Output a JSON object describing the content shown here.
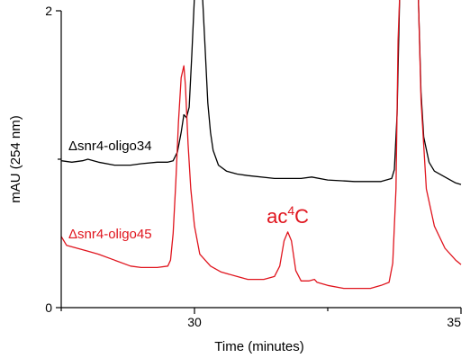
{
  "chart_data": {
    "type": "line",
    "title": "",
    "xlabel": "Time (minutes)",
    "ylabel": "mAU (254 nm)",
    "xlim": [
      27.5,
      35
    ],
    "ylim": [
      0,
      2
    ],
    "x_ticks": [
      {
        "value": 30,
        "label": "30"
      },
      {
        "value": 35,
        "label": "35"
      }
    ],
    "x_minor_ticks": [
      27.5,
      32.5
    ],
    "y_ticks": [
      {
        "value": 0,
        "label": "0"
      },
      {
        "value": 2,
        "label": "2"
      }
    ],
    "y_minor_ticks": [
      1
    ],
    "series": [
      {
        "name": "Δsnr4-oligo34",
        "color": "#000000",
        "points": [
          [
            27.5,
            0.99
          ],
          [
            27.7,
            0.98
          ],
          [
            27.9,
            0.99
          ],
          [
            28.0,
            1.0
          ],
          [
            28.2,
            0.98
          ],
          [
            28.5,
            0.96
          ],
          [
            28.8,
            0.96
          ],
          [
            29.0,
            0.97
          ],
          [
            29.3,
            0.98
          ],
          [
            29.5,
            0.98
          ],
          [
            29.6,
            0.99
          ],
          [
            29.68,
            1.05
          ],
          [
            29.75,
            1.18
          ],
          [
            29.8,
            1.3
          ],
          [
            29.85,
            1.28
          ],
          [
            29.9,
            1.35
          ],
          [
            29.95,
            1.7
          ],
          [
            30.0,
            2.1
          ],
          [
            30.15,
            2.1
          ],
          [
            30.2,
            1.75
          ],
          [
            30.25,
            1.38
          ],
          [
            30.3,
            1.18
          ],
          [
            30.35,
            1.06
          ],
          [
            30.45,
            0.96
          ],
          [
            30.6,
            0.92
          ],
          [
            30.8,
            0.9
          ],
          [
            31.0,
            0.89
          ],
          [
            31.5,
            0.87
          ],
          [
            32.0,
            0.87
          ],
          [
            32.2,
            0.88
          ],
          [
            32.5,
            0.86
          ],
          [
            33.0,
            0.85
          ],
          [
            33.5,
            0.85
          ],
          [
            33.7,
            0.87
          ],
          [
            33.75,
            0.93
          ],
          [
            33.8,
            1.3
          ],
          [
            33.85,
            2.1
          ],
          [
            34.2,
            2.1
          ],
          [
            34.25,
            1.45
          ],
          [
            34.3,
            1.15
          ],
          [
            34.4,
            0.98
          ],
          [
            34.5,
            0.92
          ],
          [
            34.7,
            0.88
          ],
          [
            34.9,
            0.84
          ],
          [
            35.0,
            0.83
          ]
        ]
      },
      {
        "name": "Δsnr4-oligo45",
        "color": "#e0151e",
        "points": [
          [
            27.5,
            0.48
          ],
          [
            27.6,
            0.42
          ],
          [
            27.8,
            0.4
          ],
          [
            28.0,
            0.38
          ],
          [
            28.2,
            0.36
          ],
          [
            28.5,
            0.32
          ],
          [
            28.8,
            0.28
          ],
          [
            29.0,
            0.27
          ],
          [
            29.3,
            0.27
          ],
          [
            29.5,
            0.28
          ],
          [
            29.55,
            0.32
          ],
          [
            29.6,
            0.5
          ],
          [
            29.65,
            0.85
          ],
          [
            29.7,
            1.25
          ],
          [
            29.75,
            1.55
          ],
          [
            29.8,
            1.63
          ],
          [
            29.83,
            1.5
          ],
          [
            29.88,
            1.1
          ],
          [
            29.93,
            0.8
          ],
          [
            30.0,
            0.55
          ],
          [
            30.1,
            0.36
          ],
          [
            30.3,
            0.28
          ],
          [
            30.5,
            0.24
          ],
          [
            30.8,
            0.21
          ],
          [
            31.0,
            0.19
          ],
          [
            31.3,
            0.19
          ],
          [
            31.5,
            0.21
          ],
          [
            31.6,
            0.28
          ],
          [
            31.68,
            0.45
          ],
          [
            31.75,
            0.51
          ],
          [
            31.82,
            0.45
          ],
          [
            31.9,
            0.25
          ],
          [
            32.0,
            0.18
          ],
          [
            32.15,
            0.18
          ],
          [
            32.25,
            0.19
          ],
          [
            32.3,
            0.17
          ],
          [
            32.5,
            0.15
          ],
          [
            32.8,
            0.13
          ],
          [
            33.0,
            0.13
          ],
          [
            33.3,
            0.13
          ],
          [
            33.5,
            0.15
          ],
          [
            33.65,
            0.17
          ],
          [
            33.72,
            0.3
          ],
          [
            33.78,
            0.8
          ],
          [
            33.82,
            1.8
          ],
          [
            33.85,
            2.1
          ],
          [
            34.2,
            2.1
          ],
          [
            34.25,
            1.4
          ],
          [
            34.35,
            0.8
          ],
          [
            34.5,
            0.55
          ],
          [
            34.7,
            0.4
          ],
          [
            34.9,
            0.32
          ],
          [
            35.0,
            0.29
          ]
        ]
      }
    ],
    "annotations": [
      {
        "text": "ac",
        "superscript": "4",
        "suffix": "C",
        "x": 31.75,
        "y": 0.58,
        "color": "#e0151e"
      }
    ]
  }
}
